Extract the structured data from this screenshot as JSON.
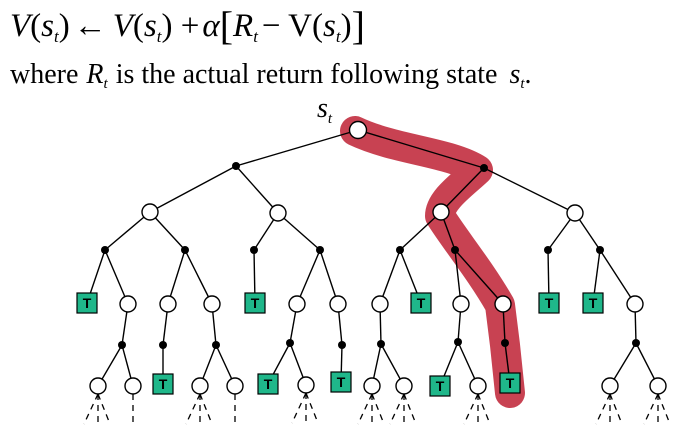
{
  "equation": {
    "lhs_V": "V",
    "lhs_open": "(",
    "lhs_s": "s",
    "lhs_sub": "t",
    "lhs_close": ")",
    "arrow": "←",
    "rhs_V": "V",
    "rhs_open": "(",
    "rhs_s": "s",
    "rhs_sub": "t",
    "rhs_close_plus": ") +",
    "alpha": "α",
    "bracket_open": "[",
    "R": "R",
    "R_sub": "t",
    "minus_V": "− V",
    "inner_open": "(",
    "inner_s": "s",
    "inner_sub": "t",
    "inner_close": ")",
    "bracket_close": "]"
  },
  "explanation": {
    "prefix": "where",
    "R": "R",
    "R_sub": "t",
    "middle": "is the actual return following state",
    "s": "s",
    "s_sub": "t",
    "suffix": "."
  },
  "root_label": {
    "s": "s",
    "sub": "t"
  },
  "terminal_label": "T",
  "colors": {
    "terminal_fill": "#1fb78a",
    "highlight": "#c0283a",
    "node_fill": "#ffffff",
    "ink": "#000000"
  }
}
